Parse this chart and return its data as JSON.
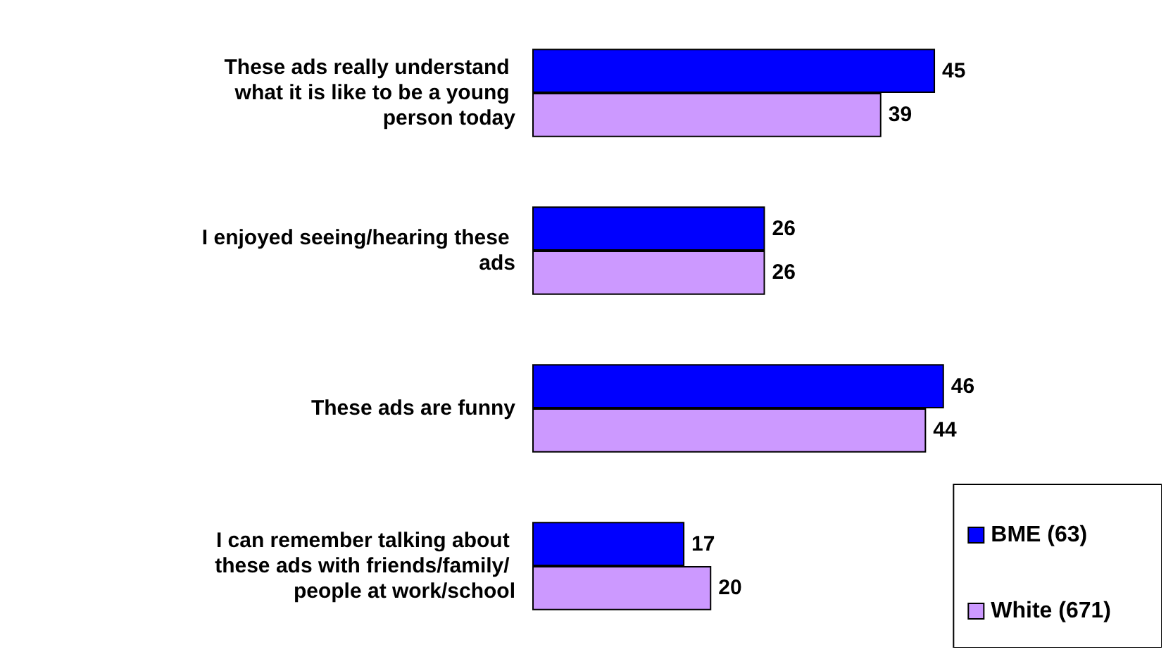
{
  "chart_data": {
    "type": "bar",
    "orientation": "horizontal",
    "categories": [
      "These ads really understand what it is like to be a young person today",
      "I enjoyed seeing/hearing these ads",
      "These ads are funny",
      "I can remember talking about these ads with friends/family/ people at work/school"
    ],
    "series": [
      {
        "name": "BME (63)",
        "color": "#0000ff",
        "values": [
          45,
          26,
          46,
          17
        ]
      },
      {
        "name": "White (671)",
        "color": "#cc99ff",
        "values": [
          39,
          26,
          44,
          20
        ]
      }
    ],
    "data_labels": true,
    "legend": "bottom right"
  }
}
